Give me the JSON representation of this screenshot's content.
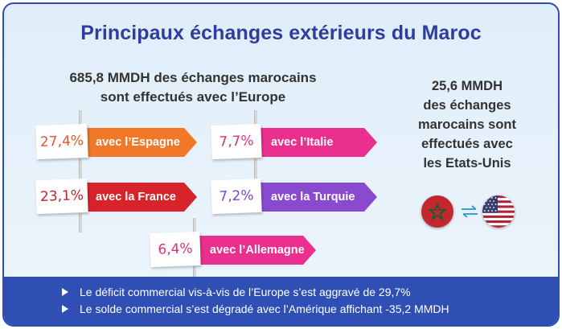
{
  "title": "Principaux échanges extérieurs du Maroc",
  "europe": {
    "line1": "685,8 MMDH des échanges marocains",
    "line2": "sont effectués avec l’Europe"
  },
  "usa": {
    "line1": "25,6 MMDH",
    "line2": "des échanges",
    "line3": "marocains sont",
    "line4": "effectués avec",
    "line5": "les Etats-Unis"
  },
  "partners": [
    {
      "share": "27,4%",
      "label": "avec l’Espagne",
      "color": "#f07828"
    },
    {
      "share": "7,7%",
      "label": "avec l’Italie",
      "color": "#ea2f8e"
    },
    {
      "share": "23,1%",
      "label": "avec la France",
      "color": "#d8232a"
    },
    {
      "share": "7,2%",
      "label": "avec la Turquie",
      "color": "#8a4ad0"
    },
    {
      "share": "6,4%",
      "label": "avec l’Allemagne",
      "color": "#ea2f8e"
    }
  ],
  "flags": {
    "left": "morocco-flag",
    "right": "usa-flag"
  },
  "notes": [
    "Le déficit commercial vis-à-vis de l’Europe s’est aggravé de 29,7%",
    "Le solde commercial s’est dégradé avec l’Amérique affichant -35,2 MMDH"
  ]
}
